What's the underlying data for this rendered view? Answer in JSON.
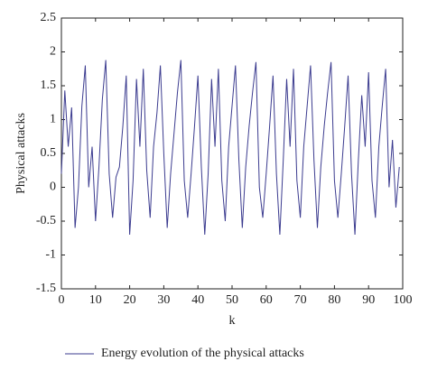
{
  "chart_data": {
    "type": "line",
    "xlabel": "k",
    "ylabel": "Physical attacks",
    "x": [
      0,
      1,
      2,
      3,
      4,
      5,
      6,
      7,
      8,
      9,
      10,
      11,
      12,
      13,
      14,
      15,
      16,
      17,
      18,
      19,
      20,
      21,
      22,
      23,
      24,
      25,
      26,
      27,
      28,
      29,
      30,
      31,
      32,
      33,
      34,
      35,
      36,
      37,
      38,
      39,
      40,
      41,
      42,
      43,
      44,
      45,
      46,
      47,
      48,
      49,
      50,
      51,
      52,
      53,
      54,
      55,
      56,
      57,
      58,
      59,
      60,
      61,
      62,
      63,
      64,
      65,
      66,
      67,
      68,
      69,
      70,
      71,
      72,
      73,
      74,
      75,
      76,
      77,
      78,
      79,
      80,
      81,
      82,
      83,
      84,
      85,
      86,
      87,
      88,
      89,
      90,
      91,
      92,
      93,
      94,
      95,
      96,
      97,
      98,
      99
    ],
    "series": [
      {
        "name": "Energy evolution of the physical attacks",
        "color": "#3b3b8f",
        "values": [
          0.2,
          1.43,
          0.6,
          1.18,
          -0.6,
          0.0,
          1.2,
          1.8,
          0.0,
          0.6,
          -0.5,
          0.3,
          1.3,
          1.88,
          0.2,
          -0.45,
          0.15,
          0.3,
          0.9,
          1.65,
          -0.7,
          0.1,
          1.6,
          0.6,
          1.75,
          0.25,
          -0.45,
          0.6,
          1.1,
          1.8,
          0.5,
          -0.6,
          0.2,
          0.8,
          1.4,
          1.88,
          0.1,
          -0.45,
          0.2,
          0.9,
          1.65,
          0.3,
          -0.7,
          0.2,
          1.6,
          0.6,
          1.75,
          0.1,
          -0.5,
          0.6,
          1.2,
          1.8,
          0.4,
          -0.6,
          0.3,
          0.9,
          1.4,
          1.85,
          0.0,
          -0.45,
          0.2,
          0.9,
          1.65,
          0.2,
          -0.7,
          0.4,
          1.6,
          0.6,
          1.75,
          0.1,
          -0.45,
          0.6,
          1.2,
          1.8,
          0.4,
          -0.6,
          0.3,
          0.9,
          1.4,
          1.85,
          0.1,
          -0.45,
          0.2,
          0.9,
          1.65,
          0.2,
          -0.7,
          0.4,
          1.36,
          0.6,
          1.7,
          0.1,
          -0.45,
          0.6,
          1.2,
          1.75,
          0.0,
          0.7,
          -0.3,
          0.3
        ]
      }
    ],
    "xlim": [
      0,
      100
    ],
    "xticks": [
      0,
      10,
      20,
      30,
      40,
      50,
      60,
      70,
      80,
      90,
      100
    ],
    "ylim": [
      -1.5,
      2.5
    ],
    "yticks": [
      -1.5,
      -1,
      -0.5,
      0,
      0.5,
      1,
      1.5,
      2,
      2.5
    ],
    "legend": "bottom"
  }
}
